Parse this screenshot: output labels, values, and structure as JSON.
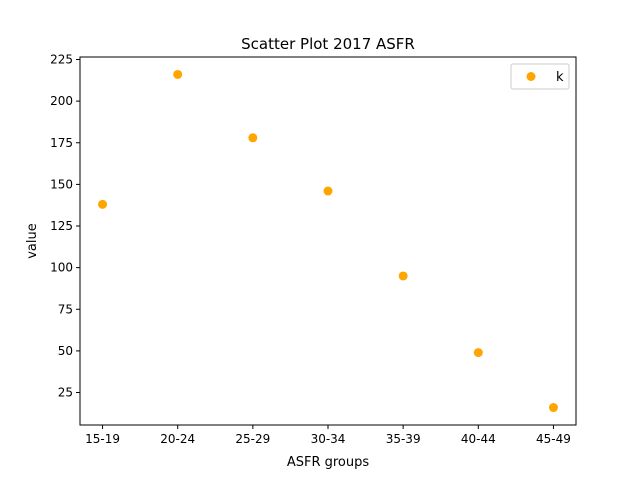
{
  "chart_data": {
    "type": "scatter",
    "title": "Scatter Plot 2017 ASFR",
    "xlabel": "ASFR groups",
    "ylabel": "value",
    "categories": [
      "15-19",
      "20-24",
      "25-29",
      "30-34",
      "35-39",
      "40-44",
      "45-49"
    ],
    "series": [
      {
        "name": "k",
        "values": [
          138,
          216,
          178,
          146,
          95,
          49,
          16
        ],
        "color": "#ffa500"
      }
    ],
    "ylim": [
      5.5,
      226.5
    ],
    "yticks": [
      25,
      50,
      75,
      100,
      125,
      150,
      175,
      200,
      225
    ],
    "legend_position": "top-right",
    "grid": false
  }
}
